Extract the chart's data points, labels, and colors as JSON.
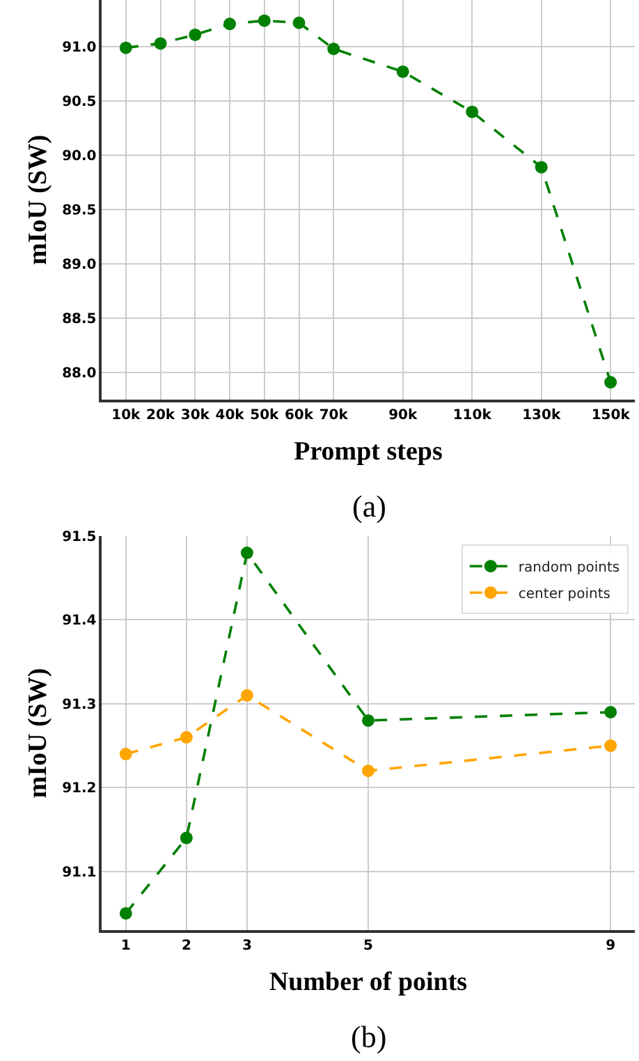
{
  "chart_data": [
    {
      "type": "line",
      "xlabel": "Prompt steps",
      "ylabel": "mIoU (SW)",
      "annotations": [
        "(a)"
      ],
      "x": [
        10,
        20,
        30,
        40,
        50,
        60,
        70,
        90,
        110,
        130,
        150
      ],
      "series": [
        {
          "color": "#008000",
          "values": [
            90.99,
            91.03,
            91.11,
            91.21,
            91.24,
            91.22,
            90.98,
            90.77,
            90.4,
            89.89,
            87.91
          ]
        }
      ],
      "xlim": [
        3,
        157
      ],
      "ylim": [
        87.75,
        91.43
      ],
      "xticks": [
        {
          "value": 10,
          "label": "10k"
        },
        {
          "value": 20,
          "label": "20k"
        },
        {
          "value": 30,
          "label": "30k"
        },
        {
          "value": 40,
          "label": "40k"
        },
        {
          "value": 50,
          "label": "50k"
        },
        {
          "value": 60,
          "label": "60k"
        },
        {
          "value": 70,
          "label": "70k"
        },
        {
          "value": 90,
          "label": "90k"
        },
        {
          "value": 110,
          "label": "110k"
        },
        {
          "value": 130,
          "label": "130k"
        },
        {
          "value": 150,
          "label": "150k"
        }
      ],
      "yticks": [
        {
          "value": 88.0,
          "label": "88.0"
        },
        {
          "value": 88.5,
          "label": "88.5"
        },
        {
          "value": 89.0,
          "label": "89.0"
        },
        {
          "value": 89.5,
          "label": "89.5"
        },
        {
          "value": 90.0,
          "label": "90.0"
        },
        {
          "value": 90.5,
          "label": "90.5"
        },
        {
          "value": 91.0,
          "label": "91.0"
        }
      ],
      "grid": true,
      "legend": false,
      "marker": "circle",
      "line_style": "dashed"
    },
    {
      "type": "line",
      "xlabel": "Number of points",
      "ylabel": "mIoU (SW)",
      "annotations": [
        "(b)"
      ],
      "x": [
        1,
        2,
        3,
        5,
        9
      ],
      "series": [
        {
          "name": "random points",
          "color": "#008000",
          "values": [
            91.05,
            91.14,
            91.48,
            91.28,
            91.29
          ]
        },
        {
          "name": "center points",
          "color": "#ffa500",
          "values": [
            91.24,
            91.26,
            91.31,
            91.22,
            91.25
          ]
        }
      ],
      "xlim": [
        0.6,
        9.4
      ],
      "ylim": [
        91.03,
        91.5
      ],
      "xticks": [
        1,
        2,
        3,
        5,
        9
      ],
      "yticks": [
        91.1,
        91.2,
        91.3,
        91.4,
        91.5
      ],
      "grid": true,
      "legend": "top right",
      "marker": "circle",
      "line_style": "dashed"
    }
  ]
}
